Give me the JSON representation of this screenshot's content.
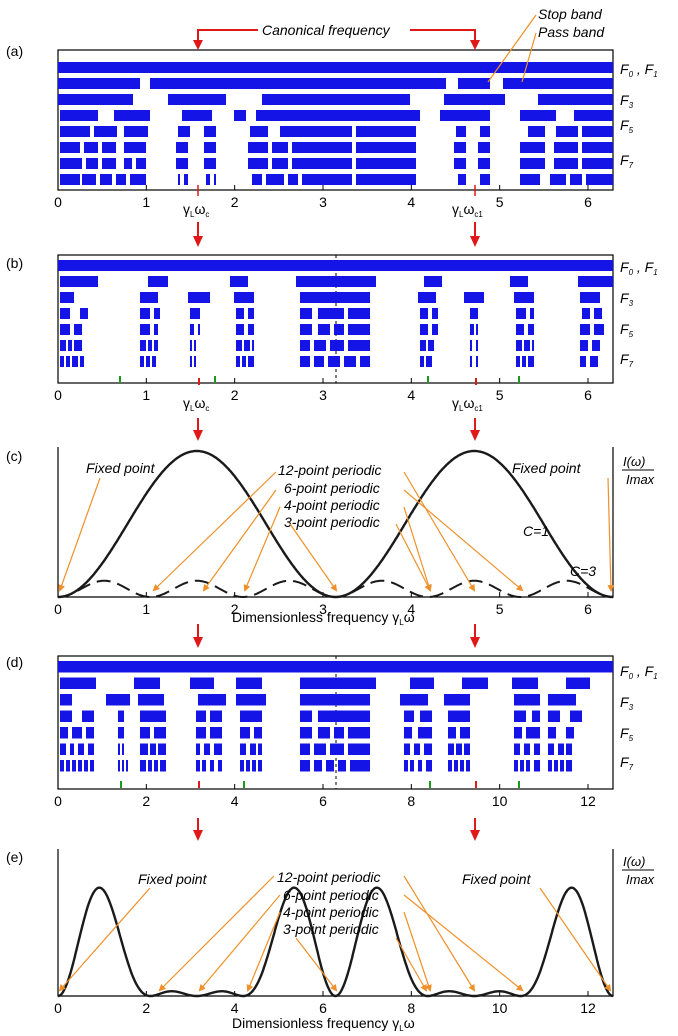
{
  "colors": {
    "band": "#1414e6",
    "arrow": "#e01818",
    "annot": "#f0902a",
    "curve": "#1a1a1a",
    "green": "#1a9a1a"
  },
  "panels": {
    "a": {
      "label": "(a)",
      "annot_top": "Canonical frequency",
      "stop_band": "Stop band",
      "pass_band": "Pass band",
      "ticks": [
        "0",
        "1",
        "2",
        "3",
        "4",
        "5",
        "6"
      ],
      "xmax": 6.2832,
      "wc": "γLωc",
      "wc1": "γLωc1"
    },
    "b": {
      "label": "(b)",
      "ticks": [
        "0",
        "1",
        "2",
        "3",
        "4",
        "5",
        "6"
      ],
      "xmax": 6.2832,
      "wc": "γLωc",
      "wc1": "γLωc1"
    },
    "c": {
      "label": "(c)",
      "ticks": [
        "0",
        "1",
        "2",
        "3",
        "4",
        "5",
        "6"
      ],
      "xmax": 6.2832,
      "xlabel": "Dimensionless frequency γLω",
      "ylabel_num": "I(ω)",
      "ylabel_den": "Imax",
      "fixed_left": "Fixed point",
      "fixed_right": "Fixed point",
      "periodic": [
        "12-point periodic",
        "6-point periodic",
        "4-point periodic",
        "3-point periodic"
      ],
      "c1": "C=1",
      "c3": "C=3"
    },
    "d": {
      "label": "(d)",
      "ticks": [
        "0",
        "2",
        "4",
        "6",
        "8",
        "10",
        "12"
      ],
      "xmax": 12.566
    },
    "e": {
      "label": "(e)",
      "ticks": [
        "0",
        "2",
        "4",
        "6",
        "8",
        "10",
        "12"
      ],
      "xmax": 12.566,
      "xlabel": "Dimensionless frequency γLω",
      "ylabel_num": "I(ω)",
      "ylabel_den": "Imax",
      "fixed_left": "Fixed point",
      "fixed_right": "Fixed point",
      "periodic": [
        "12-point periodic",
        "6-point periodic",
        "4-point periodic",
        "3-point periodic"
      ]
    }
  },
  "row_labels": {
    "f01": "F0 , F1",
    "f3": "F3",
    "f5": "F5",
    "f7": "F7"
  }
}
